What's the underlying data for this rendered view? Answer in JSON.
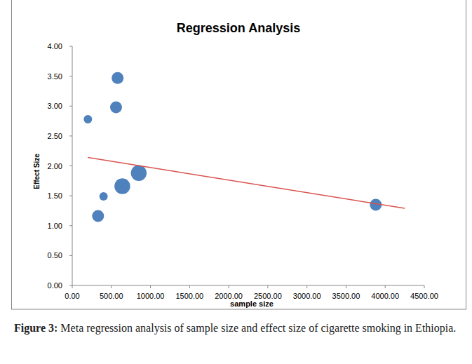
{
  "chart_data": {
    "type": "scatter",
    "title": "Regression Analysis",
    "x_label": "sample size",
    "y_label": "Effect Size",
    "figure_label": "Figure 3:",
    "caption": "Meta regression analysis of sample size and effect size of cigarette smoking in Ethiopia.",
    "series": [
      {
        "type": "scatter",
        "color": "#4f81bd",
        "marker": "circle",
        "x": [
          200,
          580,
          560,
          400,
          330,
          640,
          850,
          3880
        ],
        "values": [
          2.78,
          3.47,
          2.98,
          1.49,
          1.16,
          1.66,
          1.88,
          1.35
        ],
        "sizes": [
          1,
          2,
          2,
          1,
          2,
          3.5,
          3.5,
          2
        ]
      },
      {
        "type": "line",
        "color": "#d9534f",
        "line_style": "solid",
        "x": [
          200,
          4250
        ],
        "values": [
          2.14,
          1.29
        ]
      }
    ],
    "xlim": [
      0,
      4500
    ],
    "ylim": [
      0,
      4
    ],
    "xticks": [
      {
        "value": 0,
        "label": "0.00"
      },
      {
        "value": 500,
        "label": "500.00"
      },
      {
        "value": 1000,
        "label": "1000.00"
      },
      {
        "value": 1500,
        "label": "1500.00"
      },
      {
        "value": 2000,
        "label": "2000.00"
      },
      {
        "value": 2500,
        "label": "2500.00"
      },
      {
        "value": 3000,
        "label": "3000.00"
      },
      {
        "value": 3500,
        "label": "3500.00"
      },
      {
        "value": 4000,
        "label": "4000.00"
      },
      {
        "value": 4500,
        "label": "4500.00"
      }
    ],
    "yticks": [
      {
        "value": 0,
        "label": "0.00"
      },
      {
        "value": 0.5,
        "label": "0.50"
      },
      {
        "value": 1,
        "label": "1.00"
      },
      {
        "value": 1.5,
        "label": "1.50"
      },
      {
        "value": 2,
        "label": "2.00"
      },
      {
        "value": 2.5,
        "label": "2.50"
      },
      {
        "value": 3,
        "label": "3.00"
      },
      {
        "value": 3.5,
        "label": "3.50"
      },
      {
        "value": 4,
        "label": "4.00"
      }
    ],
    "grid": false
  }
}
